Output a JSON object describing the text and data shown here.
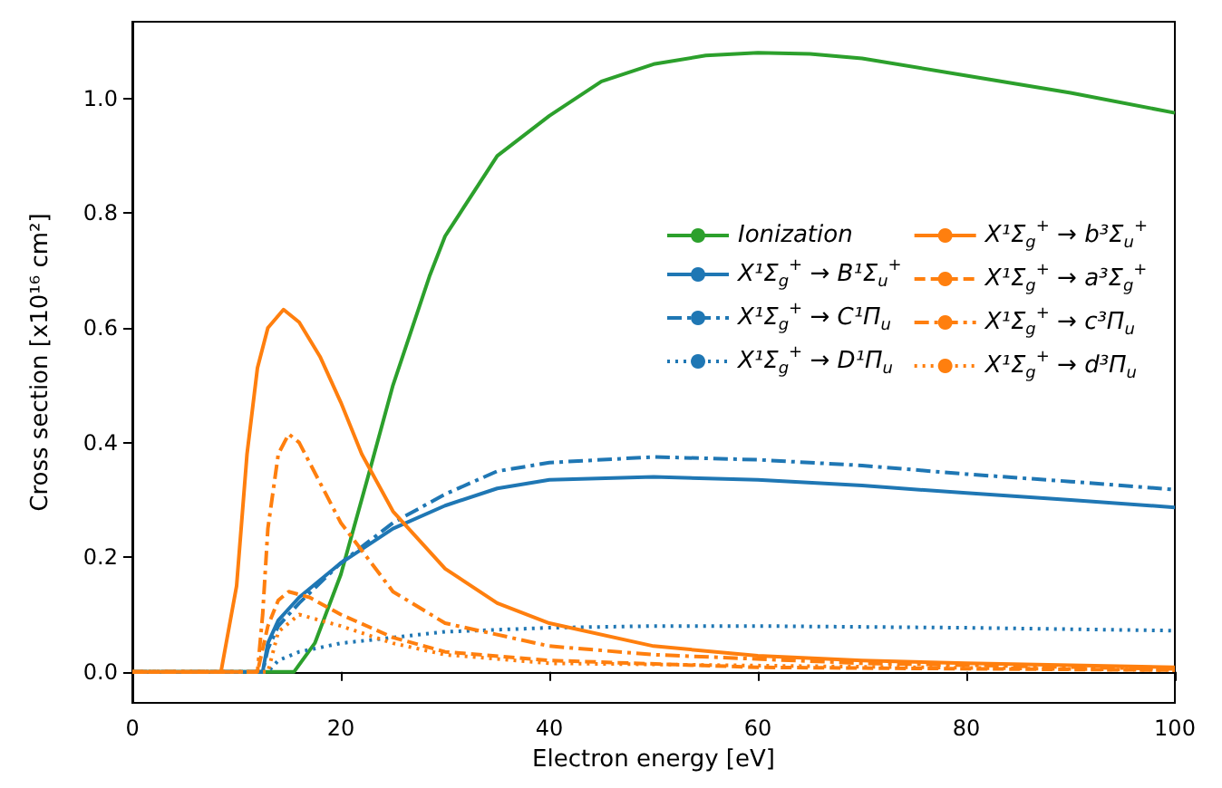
{
  "chart_data": {
    "type": "line",
    "xlabel": "Electron energy [eV]",
    "ylabel": "Cross section [x10¹⁶ cm²]",
    "xlim": [
      0,
      100
    ],
    "xticks": [
      0,
      20,
      40,
      60,
      80,
      100
    ],
    "ylim": [
      -0.054,
      1.134
    ],
    "yticks": [
      {
        "value": 0,
        "label": "0.0"
      },
      {
        "value": 0.2,
        "label": "0.2"
      },
      {
        "value": 0.4,
        "label": "0.4"
      },
      {
        "value": 0.6,
        "label": "0.6"
      },
      {
        "value": 0.8,
        "label": "0.8"
      },
      {
        "value": 1,
        "label": "1.0"
      }
    ],
    "legend": "right",
    "marker": "none",
    "series": [
      {
        "name": "Ionization",
        "color": "#2ca02c",
        "line_style": "solid",
        "x": [
          0,
          15.5,
          17.5,
          20,
          22.6,
          25,
          28.5,
          30,
          35,
          40,
          45,
          50,
          55,
          60,
          65,
          70,
          80,
          90,
          100
        ],
        "values": [
          0,
          0,
          0.05,
          0.17,
          0.34,
          0.5,
          0.69,
          0.76,
          0.9,
          0.97,
          1.03,
          1.06,
          1.075,
          1.08,
          1.078,
          1.07,
          1.04,
          1.01,
          0.975
        ]
      },
      {
        "name": "X¹Σ$_{g}$$^{+}$ → B¹Σ$_{u}$$^{+}$",
        "color": "#1f77b4",
        "line_style": "solid",
        "x": [
          0,
          12.5,
          13,
          14,
          16,
          20,
          25,
          30,
          35,
          40,
          50,
          60,
          70,
          80,
          90,
          100
        ],
        "values": [
          0,
          0,
          0.05,
          0.09,
          0.13,
          0.19,
          0.25,
          0.29,
          0.32,
          0.335,
          0.34,
          0.335,
          0.325,
          0.312,
          0.3,
          0.287
        ]
      },
      {
        "name": "X¹Σ$_{g}$$^{+}$ → C¹Π$_{u}$",
        "color": "#1f77b4",
        "line_style": "dashdot",
        "x": [
          0,
          12.5,
          13,
          14,
          16,
          20,
          25,
          30,
          35,
          40,
          50,
          60,
          70,
          80,
          90,
          100
        ],
        "values": [
          0,
          0,
          0.04,
          0.08,
          0.12,
          0.19,
          0.26,
          0.31,
          0.35,
          0.365,
          0.375,
          0.37,
          0.36,
          0.345,
          0.332,
          0.318
        ]
      },
      {
        "name": "X¹Σ$_{g}$$^{+}$ → D¹Π$_{u}$",
        "color": "#1f77b4",
        "line_style": "dotted",
        "x": [
          0,
          13,
          14,
          16,
          20,
          25,
          30,
          40,
          50,
          60,
          80,
          100
        ],
        "values": [
          0,
          0,
          0.02,
          0.035,
          0.05,
          0.06,
          0.07,
          0.077,
          0.08,
          0.08,
          0.077,
          0.072
        ]
      },
      {
        "name": "X¹Σ$_{g}$$^{+}$ → b³Σ$_{u}$$^{+}$",
        "color": "#ff7f0e",
        "line_style": "solid",
        "x": [
          0,
          8.5,
          10,
          11,
          12,
          13,
          14.5,
          16,
          18,
          20,
          22,
          25,
          30,
          35,
          40,
          50,
          60,
          70,
          80,
          100
        ],
        "values": [
          0,
          0,
          0.15,
          0.38,
          0.53,
          0.6,
          0.632,
          0.61,
          0.55,
          0.47,
          0.38,
          0.28,
          0.18,
          0.12,
          0.085,
          0.045,
          0.028,
          0.02,
          0.015,
          0.008
        ]
      },
      {
        "name": "X¹Σ$_{g}$$^{+}$ → a³Σ$_{g}$$^{+}$",
        "color": "#ff7f0e",
        "line_style": "dashed",
        "x": [
          0,
          12,
          13,
          14,
          15,
          17,
          20,
          25,
          30,
          40,
          60,
          100
        ],
        "values": [
          0,
          0,
          0.08,
          0.125,
          0.14,
          0.13,
          0.1,
          0.06,
          0.035,
          0.02,
          0.008,
          0.003
        ]
      },
      {
        "name": "X¹Σ$_{g}$$^{+}$ → c³Π$_{u}$",
        "color": "#ff7f0e",
        "line_style": "dashdot",
        "x": [
          0,
          12,
          12.5,
          13,
          14,
          15,
          16,
          18,
          20,
          25,
          30,
          40,
          50,
          70,
          100
        ],
        "values": [
          0,
          0,
          0.1,
          0.25,
          0.38,
          0.415,
          0.4,
          0.33,
          0.26,
          0.14,
          0.085,
          0.045,
          0.03,
          0.015,
          0.005
        ]
      },
      {
        "name": "X¹Σ$_{g}$$^{+}$ → d³Π$_{u}$",
        "color": "#ff7f0e",
        "line_style": "dotted",
        "x": [
          0,
          13,
          14,
          16,
          20,
          25,
          30,
          40,
          100
        ],
        "values": [
          0,
          0,
          0.07,
          0.1,
          0.08,
          0.05,
          0.03,
          0.015,
          0.003
        ]
      }
    ]
  }
}
